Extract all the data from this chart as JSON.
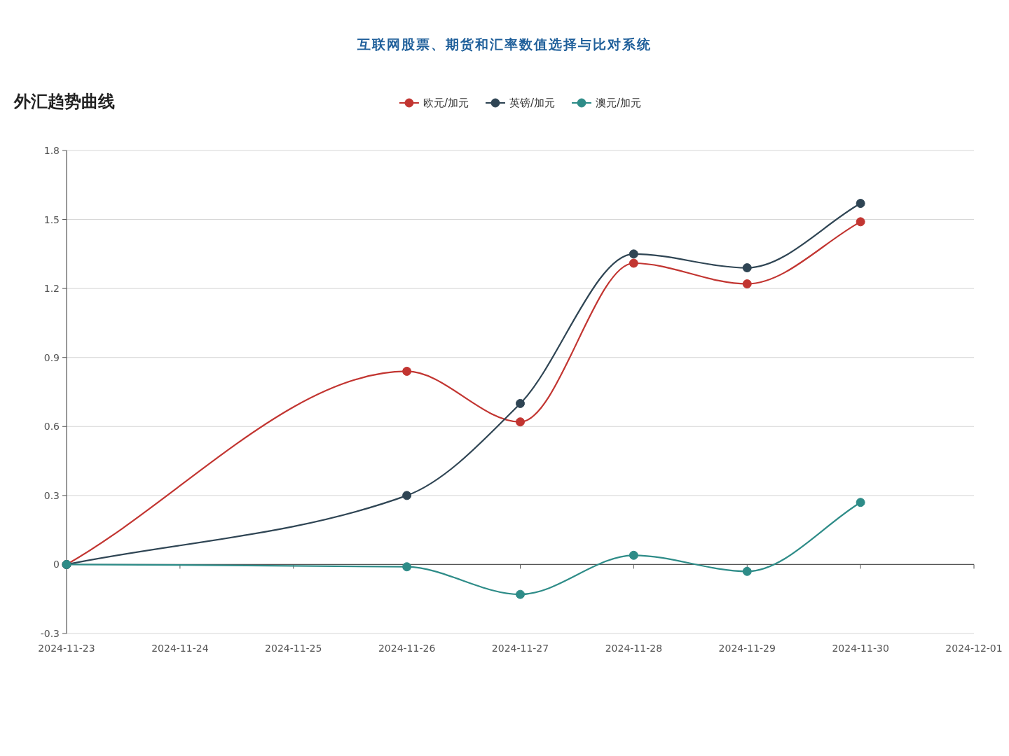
{
  "chart_data": {
    "type": "line",
    "title": "外汇趋势曲线",
    "subtitle": "互联网股票、期货和汇率数值选择与比对系统",
    "x": [
      "2024-11-23",
      "2024-11-26",
      "2024-11-27",
      "2024-11-28",
      "2024-11-29",
      "2024-11-30"
    ],
    "series": [
      {
        "name": "欧元/加元",
        "color": "#c23531",
        "values": [
          0,
          0.84,
          0.62,
          1.31,
          1.22,
          1.49
        ]
      },
      {
        "name": "英镑/加元",
        "color": "#2f4554",
        "values": [
          0,
          0.3,
          0.7,
          1.35,
          1.29,
          1.57
        ]
      },
      {
        "name": "澳元/加元",
        "color": "#2e8c88",
        "values": [
          0,
          -0.01,
          -0.13,
          0.04,
          -0.03,
          0.27
        ]
      }
    ],
    "xlim": [
      "2024-11-23",
      "2024-12-01"
    ],
    "xticks": [
      "2024-11-23",
      "2024-11-24",
      "2024-11-25",
      "2024-11-26",
      "2024-11-27",
      "2024-11-28",
      "2024-11-29",
      "2024-11-30",
      "2024-12-01"
    ],
    "ylim": [
      -0.3,
      1.8
    ],
    "yticks": [
      -0.3,
      0,
      0.3,
      0.6,
      0.9,
      1.2,
      1.5,
      1.8
    ],
    "grid": "y",
    "legend": "top",
    "marker": "circle",
    "line_style": "solid"
  }
}
